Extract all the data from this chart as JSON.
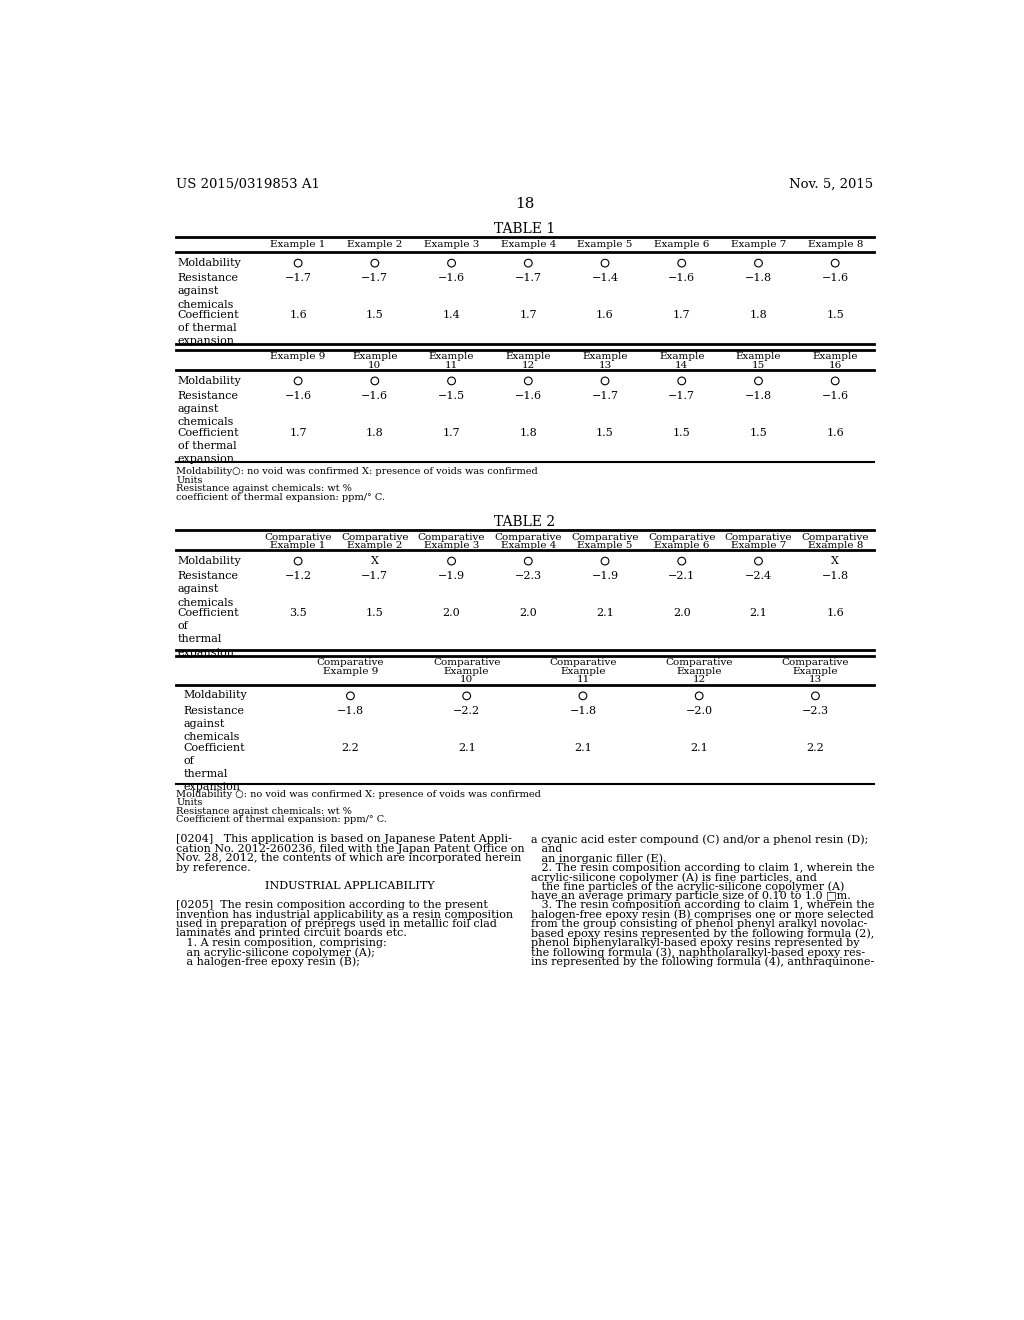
{
  "header_left": "US 2015/0319853 A1",
  "header_right": "Nov. 5, 2015",
  "page_number": "18",
  "bg_color": "#ffffff",
  "table1_title": "TABLE 1",
  "table1_part1_cols": [
    "",
    "Example 1",
    "Example 2",
    "Example 3",
    "Example 4",
    "Example 5",
    "Example 6",
    "Example 7",
    "Example 8"
  ],
  "table1_part1_rows": [
    [
      "Moldability",
      "O",
      "O",
      "O",
      "O",
      "O",
      "O",
      "O",
      "O"
    ],
    [
      "Resistance\nagainst\nchemicals",
      "−1.7",
      "−1.7",
      "−1.6",
      "−1.7",
      "−1.4",
      "−1.6",
      "−1.8",
      "−1.6"
    ],
    [
      "Coefficient\nof thermal\nexpansion",
      "1.6",
      "1.5",
      "1.4",
      "1.7",
      "1.6",
      "1.7",
      "1.8",
      "1.5"
    ]
  ],
  "table1_part2_cols": [
    "",
    "Example 9",
    "Example\n10",
    "Example\n11",
    "Example\n12",
    "Example\n13",
    "Example\n14",
    "Example\n15",
    "Example\n16"
  ],
  "table1_part2_rows": [
    [
      "Moldability",
      "O",
      "O",
      "O",
      "O",
      "O",
      "O",
      "O",
      "O"
    ],
    [
      "Resistance\nagainst\nchemicals",
      "−1.6",
      "−1.6",
      "−1.5",
      "−1.6",
      "−1.7",
      "−1.7",
      "−1.8",
      "−1.6"
    ],
    [
      "Coefficient\nof thermal\nexpansion",
      "1.7",
      "1.8",
      "1.7",
      "1.8",
      "1.5",
      "1.5",
      "1.5",
      "1.6"
    ]
  ],
  "table1_footnotes": [
    "Moldability○: no void was confirmed X: presence of voids was confirmed",
    "Units",
    "Resistance against chemicals: wt %",
    "coefficient of thermal expansion: ppm/° C."
  ],
  "table2_title": "TABLE 2",
  "table2_part1_cols": [
    "",
    "Comparative\nExample 1",
    "Comparative\nExample 2",
    "Comparative\nExample 3",
    "Comparative\nExample 4",
    "Comparative\nExample 5",
    "Comparative\nExample 6",
    "Comparative\nExample 7",
    "Comparative\nExample 8"
  ],
  "table2_part1_rows": [
    [
      "Moldability",
      "O",
      "X",
      "O",
      "O",
      "O",
      "O",
      "O",
      "X"
    ],
    [
      "Resistance\nagainst\nchemicals",
      "−1.2",
      "−1.7",
      "−1.9",
      "−2.3",
      "−1.9",
      "−2.1",
      "−2.4",
      "−1.8"
    ],
    [
      "Coefficient\nof\nthermal\nexpansion",
      "3.5",
      "1.5",
      "2.0",
      "2.0",
      "2.1",
      "2.0",
      "2.1",
      "1.6"
    ]
  ],
  "table2_part2_cols": [
    "",
    "Comparative\nExample 9",
    "Comparative\nExample\n10",
    "Comparative\nExample\n11",
    "Comparative\nExample\n12",
    "Comparative\nExample\n13"
  ],
  "table2_part2_rows": [
    [
      "Moldability",
      "O",
      "O",
      "O",
      "O",
      "O"
    ],
    [
      "Resistance\nagainst\nchemicals",
      "−1.8",
      "−2.2",
      "−1.8",
      "−2.0",
      "−2.3"
    ],
    [
      "Coefficient\nof\nthermal\nexpansion",
      "2.2",
      "2.1",
      "2.1",
      "2.1",
      "2.2"
    ]
  ],
  "table2_footnotes": [
    "Moldability ○: no void was confirmed X: presence of voids was confirmed",
    "Units",
    "Resistance against chemicals: wt %",
    "Coefficient of thermal expansion: ppm/° C."
  ],
  "left_col_lines": [
    {
      "text": "[0204]   This application is based on Japanese Patent Appli-",
      "bold": false,
      "center": false,
      "indent": false
    },
    {
      "text": "cation No. 2012-260236, filed with the Japan Patent Office on",
      "bold": false,
      "center": false,
      "indent": false
    },
    {
      "text": "Nov. 28, 2012, the contents of which are incorporated herein",
      "bold": false,
      "center": false,
      "indent": false
    },
    {
      "text": "by reference.",
      "bold": false,
      "center": false,
      "indent": false
    },
    {
      "text": "",
      "bold": false,
      "center": false,
      "indent": false
    },
    {
      "text": "INDUSTRIAL APPLICABILITY",
      "bold": false,
      "center": true,
      "indent": false
    },
    {
      "text": "",
      "bold": false,
      "center": false,
      "indent": false
    },
    {
      "text": "[0205]  The resin composition according to the present",
      "bold": false,
      "center": false,
      "indent": false
    },
    {
      "text": "invention has industrial applicability as a resin composition",
      "bold": false,
      "center": false,
      "indent": false
    },
    {
      "text": "used in preparation of prepregs used in metallic foil clad",
      "bold": false,
      "center": false,
      "indent": false
    },
    {
      "text": "laminates and printed circuit boards etc.",
      "bold": false,
      "center": false,
      "indent": false
    },
    {
      "text": "   1. A resin composition, comprising:",
      "bold": false,
      "center": false,
      "indent": false
    },
    {
      "text": "   an acrylic-silicone copolymer (A);",
      "bold": false,
      "center": false,
      "indent": false
    },
    {
      "text": "   a halogen-free epoxy resin (B);",
      "bold": false,
      "center": false,
      "indent": false
    }
  ],
  "right_col_lines": [
    "a cyanic acid ester compound (C) and/or a phenol resin (D);",
    "   and",
    "   an inorganic filler (E).",
    "   2. The resin composition according to claim 1, wherein the",
    "acrylic-silicone copolymer (A) is fine particles, and",
    "   the fine particles of the acrylic-silicone copolymer (A)",
    "have an average primary particle size of 0.10 to 1.0 □m.",
    "   3. The resin composition according to claim 1, wherein the",
    "halogen-free epoxy resin (B) comprises one or more selected",
    "from the group consisting of phenol phenyl aralkyl novolac-",
    "based epoxy resins represented by the following formula (2),",
    "phenol biphenylaralkyl-based epoxy resins represented by",
    "the following formula (3), naphtholaralkyl-based epoxy res-",
    "ins represented by the following formula (4), anthraquinone-"
  ]
}
